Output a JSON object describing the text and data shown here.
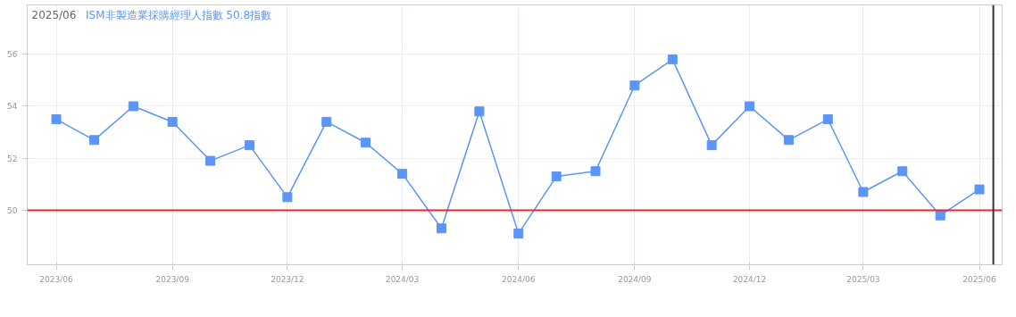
{
  "chart_data": {
    "type": "line",
    "title": "2025/06",
    "x": [
      "2023-06",
      "2023-07",
      "2023-08",
      "2023-09",
      "2023-10",
      "2023-11",
      "2023-12",
      "2024-01",
      "2024-02",
      "2024-03",
      "2024-04",
      "2024-05",
      "2024-06",
      "2024-07",
      "2024-08",
      "2024-09",
      "2024-10",
      "2024-11",
      "2024-12",
      "2025-01",
      "2025-02",
      "2025-03",
      "2025-04",
      "2025-05",
      "2025-06"
    ],
    "series": [
      {
        "name": "ISM非製造業採購經理人指數 50.8指數",
        "color": "#5b95f5",
        "values": [
          53.5,
          52.7,
          54.0,
          53.4,
          51.9,
          52.5,
          50.5,
          53.4,
          52.6,
          51.4,
          49.3,
          53.8,
          49.1,
          51.3,
          51.5,
          54.8,
          55.8,
          52.5,
          54.0,
          52.7,
          53.5,
          50.7,
          51.5,
          49.8,
          50.8
        ]
      }
    ],
    "xlim": [
      "2023-05-09",
      "2025-06-19"
    ],
    "xticks": [
      {
        "value": "2023-06",
        "label": "2023/06"
      },
      {
        "value": "2023-09",
        "label": "2023/09"
      },
      {
        "value": "2023-12",
        "label": "2023/12"
      },
      {
        "value": "2024-03",
        "label": "2024/03"
      },
      {
        "value": "2024-06",
        "label": "2024/06"
      },
      {
        "value": "2024-09",
        "label": "2024/09"
      },
      {
        "value": "2024-12",
        "label": "2024/12"
      },
      {
        "value": "2025-03",
        "label": "2025/03"
      },
      {
        "value": "2025-06",
        "label": "2025/06"
      }
    ],
    "ylim": [
      47.9,
      57.9
    ],
    "yticks": [
      50,
      52,
      54,
      56
    ],
    "ref_lines": [
      {
        "axis": "y",
        "value": 50,
        "color": "#e8262b"
      },
      {
        "axis": "x",
        "value": "2025-06-12",
        "color": "#333333"
      }
    ],
    "grid": true,
    "marker": "square",
    "line_style": "solid"
  }
}
